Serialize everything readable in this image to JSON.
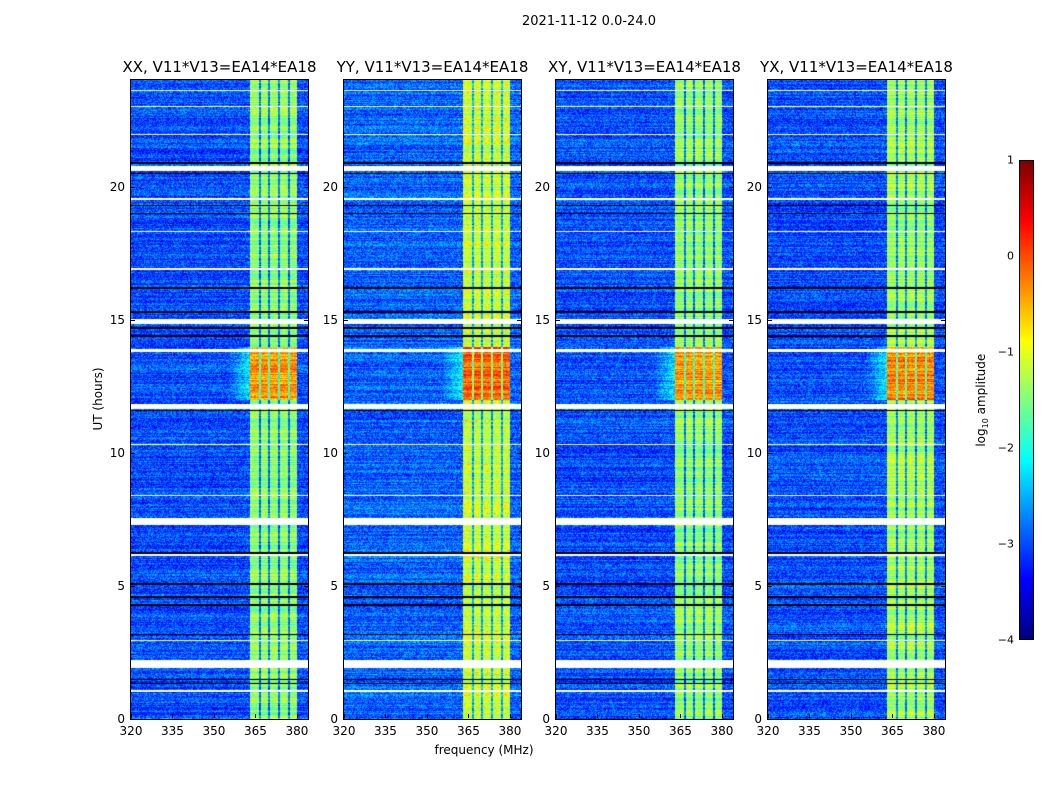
{
  "suptitle": "2021-11-12 0.0-24.0",
  "chart_data": {
    "type": "heatmap",
    "title": "2021-11-12 0.0-24.0",
    "xlabel": "frequency (MHz)",
    "ylabel": "UT (hours)",
    "xlim": [
      320,
      384
    ],
    "ylim": [
      0,
      24
    ],
    "xticks": [
      "320",
      "335",
      "350",
      "365",
      "380"
    ],
    "xtick_values": [
      320,
      335,
      350,
      365,
      380
    ],
    "yticks": [
      "0",
      "5",
      "10",
      "15",
      "20"
    ],
    "ytick_values": [
      0,
      5,
      10,
      15,
      20
    ],
    "panels": [
      {
        "title": "XX, V11*V13=EA14*EA18",
        "band_level": -1.4,
        "base_level": -3.0
      },
      {
        "title": "YY, V11*V13=EA14*EA18",
        "band_level": -1.1,
        "base_level": -2.9
      },
      {
        "title": "XY, V11*V13=EA14*EA18",
        "band_level": -1.4,
        "base_level": -3.0
      },
      {
        "title": "YX, V11*V13=EA14*EA18",
        "band_level": -1.3,
        "base_level": -3.0
      }
    ],
    "signal_band_mhz": [
      363,
      380
    ],
    "dark_channel_lines_mhz": [
      366.3,
      369.8,
      373.3,
      377.0
    ],
    "strong_interval_ut": [
      12.0,
      14.0
    ],
    "flagged_intervals_ut": [
      [
        1.95,
        2.25
      ],
      [
        7.3,
        7.55
      ],
      [
        11.65,
        11.85
      ],
      [
        14.85,
        15.05
      ],
      [
        20.6,
        20.8
      ],
      [
        21.95,
        22.0
      ],
      [
        23.0,
        23.05
      ],
      [
        13.8,
        13.9
      ],
      [
        19.5,
        19.6
      ],
      [
        6.15,
        6.2
      ],
      [
        1.05,
        1.1
      ],
      [
        2.95,
        3.0
      ],
      [
        8.4,
        8.45
      ],
      [
        10.3,
        10.35
      ],
      [
        16.9,
        16.95
      ],
      [
        18.3,
        18.35
      ],
      [
        23.6,
        23.65
      ]
    ],
    "black_lines_ut": [
      1.35,
      1.5,
      3.2,
      4.3,
      4.6,
      5.1,
      6.25,
      11.6,
      14.4,
      14.7,
      15.3,
      16.2,
      19.0,
      19.3,
      20.5,
      20.9
    ],
    "colorbar": {
      "label": "log",
      "label_sub": "10",
      "label_suffix": " amplitude",
      "clim": [
        -4,
        1
      ],
      "ticks": [
        "1",
        "0",
        "−1",
        "−2",
        "−3",
        "−4"
      ],
      "tick_values": [
        1,
        0,
        -1,
        -2,
        -3,
        -4
      ],
      "colormap": "jet"
    }
  }
}
